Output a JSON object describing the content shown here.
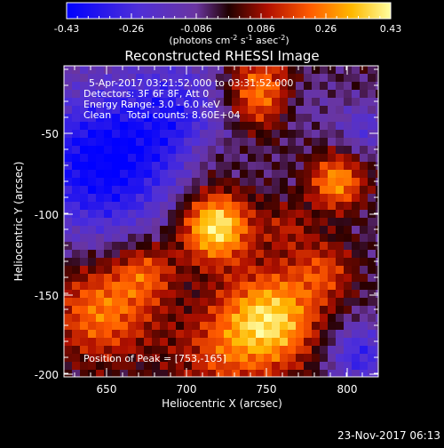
{
  "colorbar": {
    "tick_labels": [
      "-0.43",
      "-0.26",
      "-0.086",
      "0.086",
      "0.26",
      "0.43"
    ],
    "units_text": "(photons cm",
    "units_exp1": "-2",
    "units_mid": " s",
    "units_exp2": "-1",
    "units_end": " asec",
    "units_exp3": "-2",
    "units_close": ")",
    "colormap": [
      "#0000ff",
      "#5a2ad0",
      "#7a38a8",
      "#3a0000",
      "#b01000",
      "#ff5a00",
      "#ffb800",
      "#ffff60"
    ]
  },
  "plot": {
    "title": "Reconstructed RHESSI Image",
    "xlabel": "Heliocentric X (arcsec)",
    "ylabel": "Heliocentric Y (arcsec)",
    "xticks": [
      "650",
      "700",
      "750",
      "800"
    ],
    "yticks": [
      "-50",
      "-100",
      "-150",
      "-200"
    ]
  },
  "annotations": {
    "time_range": "5-Apr-2017 03:21:52.000 to 03:31:52.000",
    "detectors": "Detectors: 3F 6F 8F, Att 0",
    "energy": "Energy Range: 3.0 - 6.0 keV",
    "clean": "Clean     Total counts: 8.60E+04",
    "peak": "Position of Peak = [753,-165]"
  },
  "footer": {
    "date": "23-Nov-2017 06:13"
  }
}
